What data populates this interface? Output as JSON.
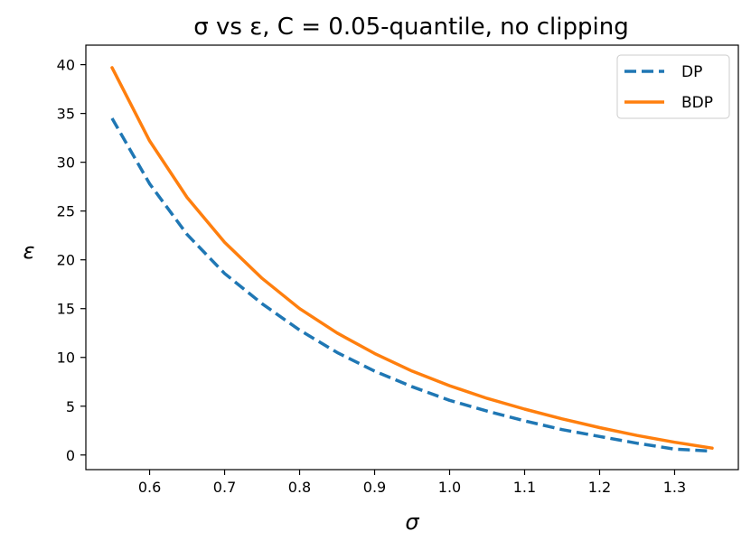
{
  "chart_data": {
    "type": "line",
    "title": "σ vs ε, C = 0.05-quantile, no clipping",
    "xlabel": "σ",
    "ylabel": "ε",
    "xlim": [
      0.515,
      1.385
    ],
    "ylim": [
      -1.5,
      42.0
    ],
    "xticks": [
      0.6,
      0.7,
      0.8,
      0.9,
      1.0,
      1.1,
      1.2,
      1.3
    ],
    "xtick_labels": [
      "0.6",
      "0.7",
      "0.8",
      "0.9",
      "1.0",
      "1.1",
      "1.2",
      "1.3"
    ],
    "yticks": [
      0,
      5,
      10,
      15,
      20,
      25,
      30,
      35,
      40
    ],
    "ytick_labels": [
      "0",
      "5",
      "10",
      "15",
      "20",
      "25",
      "30",
      "35",
      "40"
    ],
    "grid": false,
    "legend_position": "top-right",
    "x": [
      0.55,
      0.6,
      0.65,
      0.7,
      0.75,
      0.8,
      0.85,
      0.9,
      0.95,
      1.0,
      1.05,
      1.1,
      1.15,
      1.2,
      1.25,
      1.3,
      1.35
    ],
    "series": [
      {
        "name": "DP",
        "style": "dashed",
        "color": "#1f77b4",
        "values": [
          34.5,
          27.8,
          22.6,
          18.6,
          15.5,
          12.8,
          10.5,
          8.6,
          7.0,
          5.6,
          4.5,
          3.5,
          2.6,
          1.9,
          1.2,
          0.6,
          0.4
        ]
      },
      {
        "name": "BDP",
        "style": "solid",
        "color": "#ff7f0e",
        "values": [
          39.7,
          32.2,
          26.4,
          21.8,
          18.1,
          15.0,
          12.5,
          10.4,
          8.6,
          7.1,
          5.8,
          4.7,
          3.7,
          2.8,
          2.0,
          1.3,
          0.7
        ]
      }
    ]
  }
}
